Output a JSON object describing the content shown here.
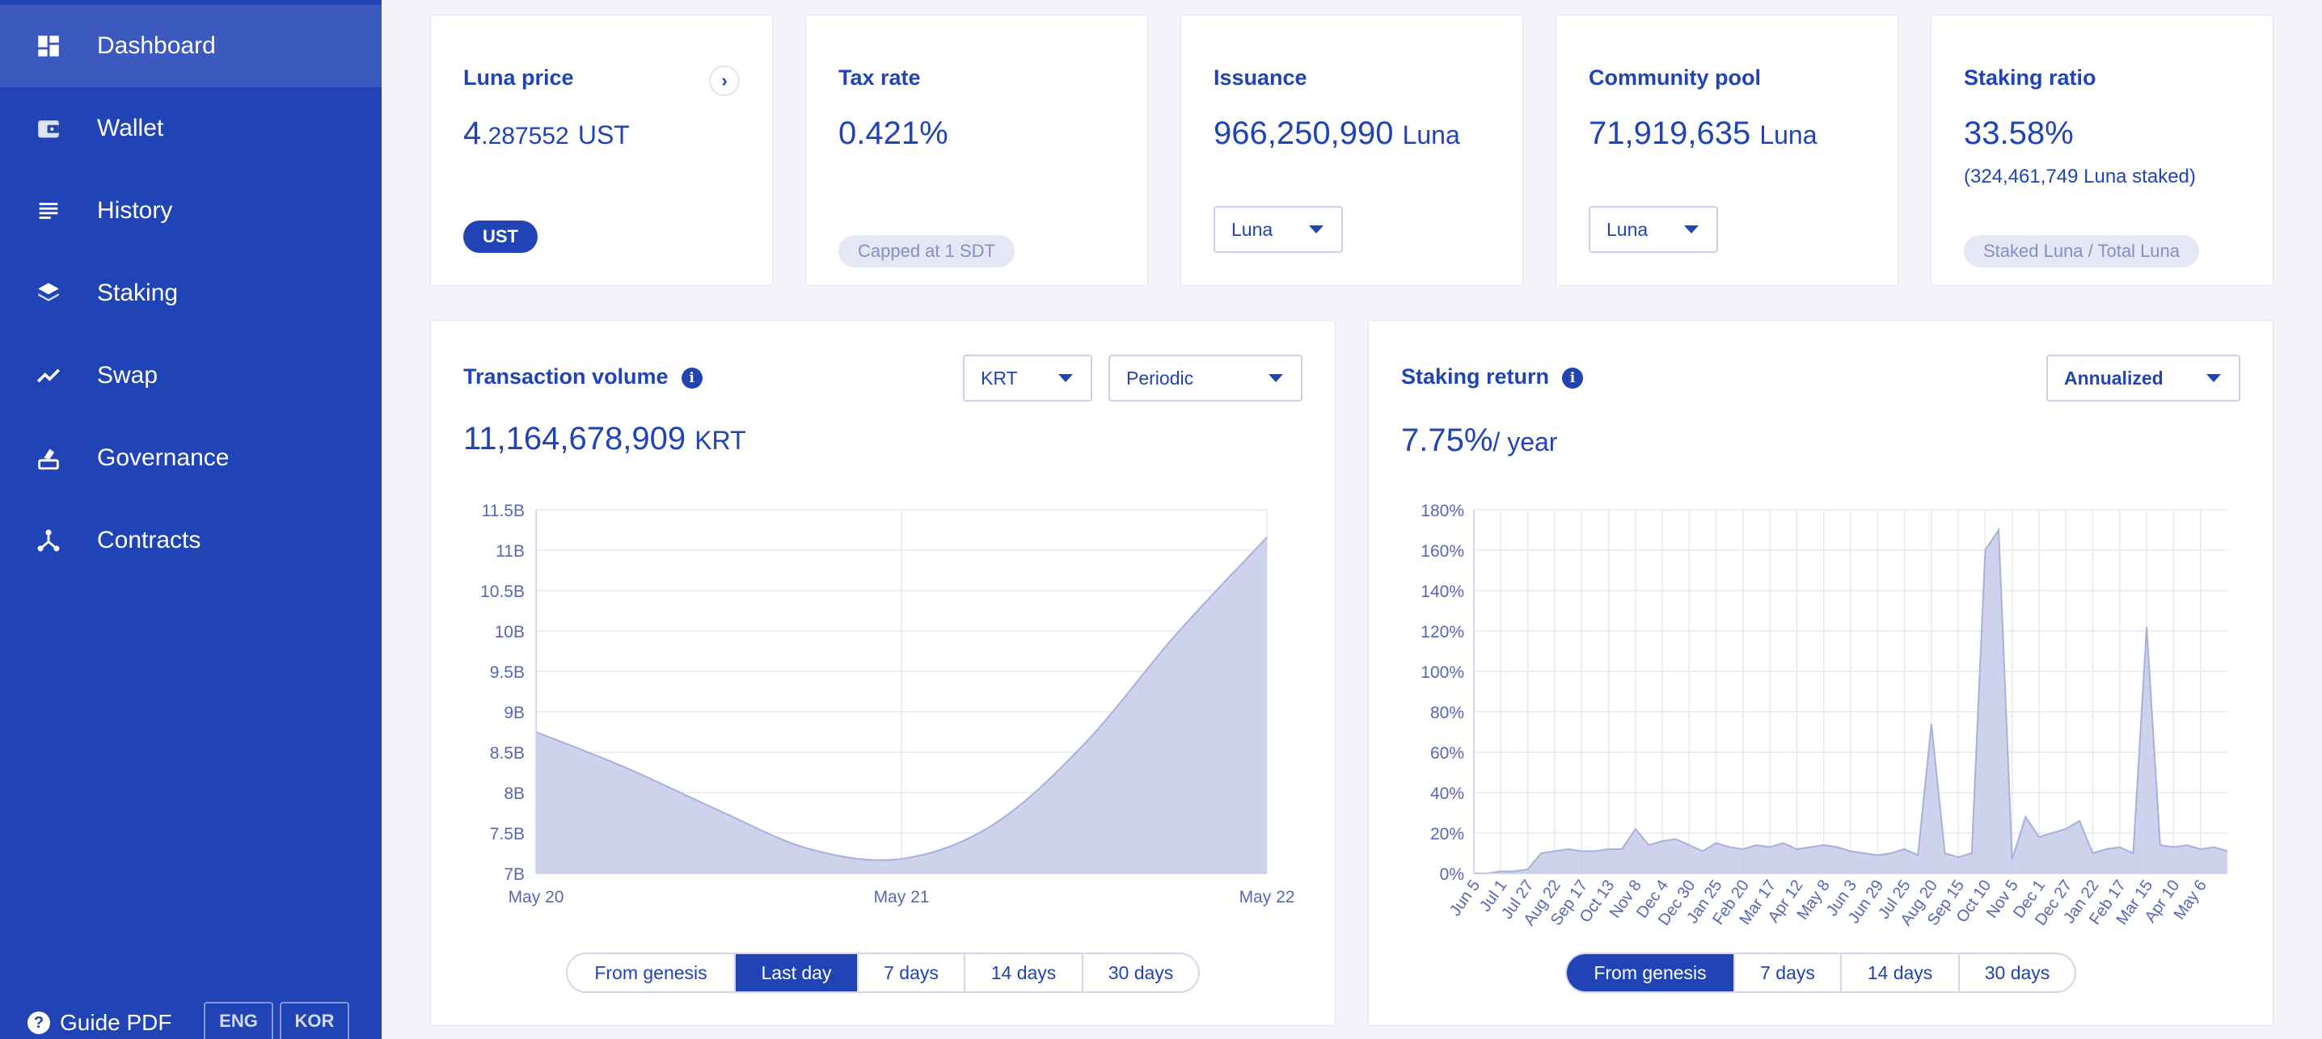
{
  "sidebar": {
    "items": [
      {
        "label": "Dashboard",
        "icon": "dashboard-icon"
      },
      {
        "label": "Wallet",
        "icon": "wallet-icon"
      },
      {
        "label": "History",
        "icon": "history-icon"
      },
      {
        "label": "Staking",
        "icon": "staking-icon"
      },
      {
        "label": "Swap",
        "icon": "swap-icon"
      },
      {
        "label": "Governance",
        "icon": "governance-icon"
      },
      {
        "label": "Contracts",
        "icon": "contracts-icon"
      }
    ],
    "guide_label": "Guide PDF",
    "lang_eng": "ENG",
    "lang_kor": "KOR"
  },
  "stats": {
    "luna_price": {
      "title": "Luna price",
      "int": "4",
      "dec": ".287552",
      "unit": "UST",
      "pill": "UST"
    },
    "tax_rate": {
      "title": "Tax rate",
      "value": "0.421%",
      "pill": "Capped at 1 SDT"
    },
    "issuance": {
      "title": "Issuance",
      "value": "966,250,990",
      "unit": "Luna",
      "select": "Luna"
    },
    "community_pool": {
      "title": "Community pool",
      "value": "71,919,635",
      "unit": "Luna",
      "select": "Luna"
    },
    "staking_ratio": {
      "title": "Staking ratio",
      "value": "33.58%",
      "sub": "(324,461,749 Luna staked)",
      "pill": "Staked Luna / Total Luna"
    }
  },
  "tx_volume": {
    "title": "Transaction volume",
    "value": "11,164,678,909",
    "unit": "KRT",
    "currency_select": "KRT",
    "mode_select": "Periodic",
    "ranges": [
      "From genesis",
      "Last day",
      "7 days",
      "14 days",
      "30 days"
    ],
    "active_range": "Last day"
  },
  "staking_return": {
    "title": "Staking return",
    "value": "7.75%",
    "unit": "/ year",
    "mode_select": "Annualized",
    "ranges": [
      "From genesis",
      "7 days",
      "14 days",
      "30 days"
    ],
    "active_range": "From genesis"
  },
  "colors": {
    "brand": "#2043b5",
    "area_fill": "#c5cae9",
    "area_stroke": "#a8b0dc"
  },
  "chart_data": [
    {
      "type": "area",
      "title": "Transaction volume",
      "categories": [
        "May 20",
        "May 21",
        "May 22"
      ],
      "x": [
        0,
        0.25,
        0.5,
        0.75,
        1.0,
        1.25,
        1.5,
        1.75,
        2.0
      ],
      "values": [
        8.75,
        8.3,
        7.78,
        7.3,
        7.18,
        7.6,
        8.6,
        9.95,
        11.16
      ],
      "yticks": [
        "7B",
        "7.5B",
        "8B",
        "8.5B",
        "9B",
        "9.5B",
        "10B",
        "10.5B",
        "11B",
        "11.5B"
      ],
      "ylim": [
        7,
        11.5
      ],
      "yunit": "B",
      "grid": true
    },
    {
      "type": "area",
      "title": "Staking return",
      "xticks": [
        "Jun 5",
        "Jul 1",
        "Jul 27",
        "Aug 22",
        "Sep 17",
        "Oct 13",
        "Nov 8",
        "Dec 4",
        "Dec 30",
        "Jan 25",
        "Feb 20",
        "Mar 17",
        "Apr 12",
        "May 8",
        "Jun 3",
        "Jun 29",
        "Jul 25",
        "Aug 20",
        "Sep 15",
        "Oct 10",
        "Nov 5",
        "Dec 1",
        "Dec 27",
        "Jan 22",
        "Feb 17",
        "Mar 15",
        "Apr 10",
        "May 6"
      ],
      "yticks": [
        "0%",
        "20%",
        "40%",
        "60%",
        "80%",
        "100%",
        "120%",
        "140%",
        "160%",
        "180%"
      ],
      "ylim": [
        0,
        180
      ],
      "values": [
        0,
        0,
        1,
        1,
        2,
        10,
        11,
        12,
        11,
        11,
        12,
        12,
        22,
        14,
        16,
        17,
        14,
        11,
        15,
        13,
        12,
        14,
        13,
        15,
        12,
        13,
        14,
        13,
        11,
        10,
        9,
        10,
        12,
        9,
        74,
        10,
        8,
        10,
        160,
        170,
        7,
        28,
        18,
        20,
        22,
        26,
        10,
        12,
        13,
        10,
        122,
        14,
        13,
        14,
        12,
        13,
        11
      ],
      "grid": true
    }
  ]
}
